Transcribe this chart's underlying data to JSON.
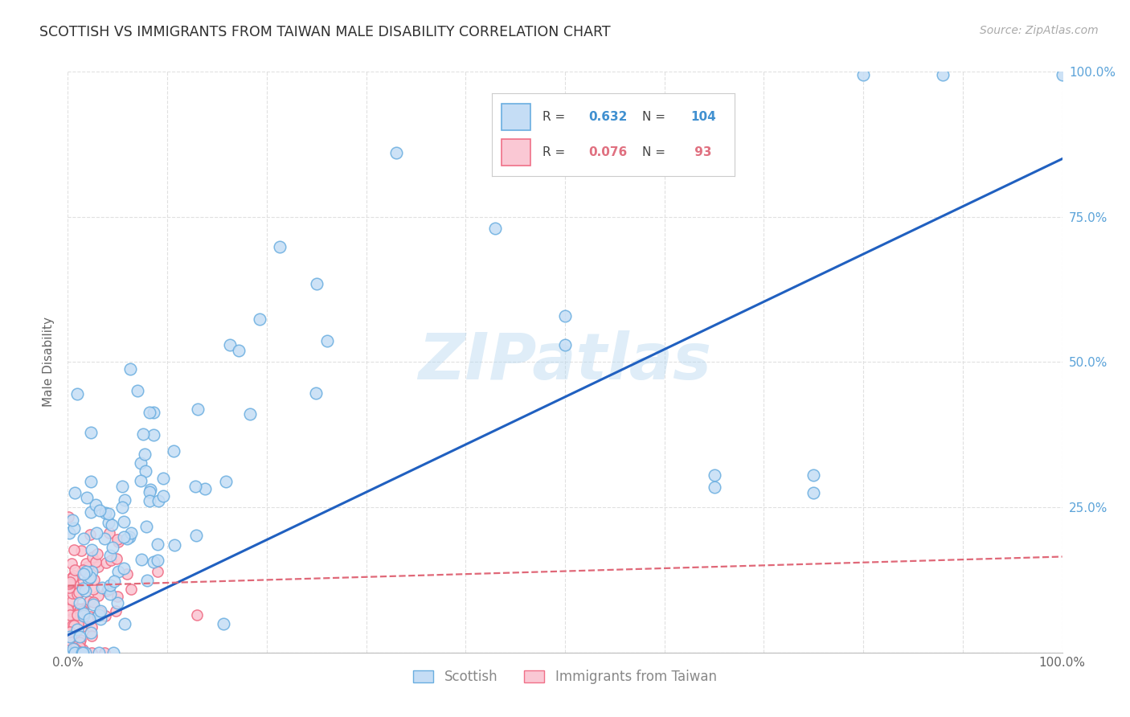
{
  "title": "SCOTTISH VS IMMIGRANTS FROM TAIWAN MALE DISABILITY CORRELATION CHART",
  "source": "Source: ZipAtlas.com",
  "ylabel": "Male Disability",
  "watermark": "ZIPatlas",
  "scottish_R": 0.632,
  "scottish_N": 104,
  "taiwan_R": 0.076,
  "taiwan_N": 93,
  "scottish_dot_face": "#c5ddf5",
  "scottish_dot_edge": "#6aaee0",
  "taiwan_dot_face": "#fac8d4",
  "taiwan_dot_edge": "#f07088",
  "scottish_line_color": "#2060c0",
  "taiwan_line_color": "#e06878",
  "background_color": "#ffffff",
  "grid_color": "#dddddd",
  "title_color": "#303030",
  "source_color": "#aaaaaa",
  "right_tick_color": "#5ba3d9",
  "legend_R_color_blue": "#4090d0",
  "legend_R_color_pink": "#e07080",
  "bottom_label_color": "#888888"
}
